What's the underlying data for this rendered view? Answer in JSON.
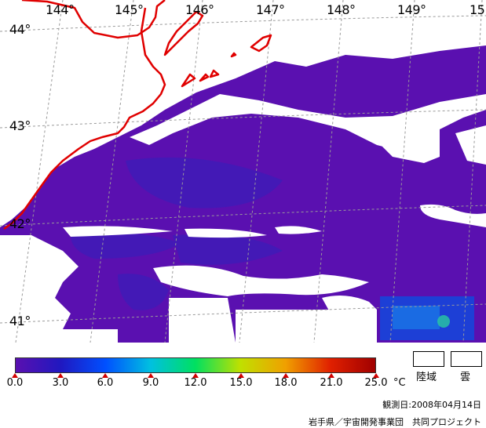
{
  "map": {
    "longitude_labels": [
      "144°",
      "145°",
      "146°",
      "147°",
      "148°",
      "149°",
      "15"
    ],
    "latitude_labels": [
      "44°",
      "43°",
      "42°",
      "41°"
    ],
    "colors": {
      "sea": "#5a10b0",
      "sea_cool": "#3a18b8",
      "cloud_land": "#ffffff",
      "coastline": "#e00000",
      "grid": "#9a9a9a"
    }
  },
  "colorbar": {
    "tick_labels": [
      "0.0",
      "3.0",
      "6.0",
      "9.0",
      "12.0",
      "15.0",
      "18.0",
      "21.0",
      "25.0"
    ],
    "unit": "°C",
    "colors": [
      "#5a10b0",
      "#2018c0",
      "#0050ff",
      "#00c0e0",
      "#00e060",
      "#c0e000",
      "#f0a000",
      "#e02000",
      "#a00000"
    ]
  },
  "legend": {
    "land_label": "陸域",
    "cloud_label": "雲"
  },
  "footer": {
    "observation_date": "観測日:2008年04月14日",
    "credit": "岩手県／宇宙開発事業団　共同プロジェクト"
  }
}
